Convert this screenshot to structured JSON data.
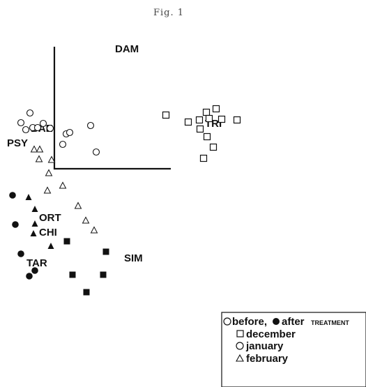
{
  "figure": {
    "caption": "Fig. 1"
  },
  "chart_data": {
    "type": "scatter",
    "title": "",
    "xlabel": "",
    "ylabel": "",
    "axis_labels": {
      "vertical": "DAM"
    },
    "group_labels": [
      {
        "text": "BAE"
      },
      {
        "text": "PSY"
      },
      {
        "text": "TRI"
      },
      {
        "text": "ORT"
      },
      {
        "text": "CHI"
      },
      {
        "text": "TAR"
      },
      {
        "text": "SIM"
      }
    ],
    "series": [
      {
        "name": "before, december",
        "marker": "open-square",
        "points": [
          [
            238,
            165
          ],
          [
            270,
            175
          ],
          [
            286,
            172
          ],
          [
            296,
            161
          ],
          [
            310,
            156
          ],
          [
            300,
            170
          ],
          [
            318,
            171
          ],
          [
            340,
            172
          ],
          [
            287,
            185
          ],
          [
            297,
            196
          ],
          [
            306,
            211
          ],
          [
            292,
            227
          ]
        ]
      },
      {
        "name": "before, january",
        "marker": "open-circle",
        "points": [
          [
            43,
            162
          ],
          [
            30,
            176
          ],
          [
            37,
            186
          ],
          [
            47,
            183
          ],
          [
            54,
            183
          ],
          [
            62,
            177
          ],
          [
            72,
            184
          ],
          [
            95,
            192
          ],
          [
            100,
            190
          ],
          [
            90,
            207
          ],
          [
            130,
            180
          ],
          [
            138,
            218
          ]
        ]
      },
      {
        "name": "before, february",
        "marker": "open-triangle",
        "points": [
          [
            49,
            214
          ],
          [
            57,
            214
          ],
          [
            56,
            228
          ],
          [
            74,
            229
          ],
          [
            70,
            248
          ],
          [
            90,
            266
          ],
          [
            68,
            273
          ],
          [
            112,
            295
          ],
          [
            123,
            316
          ],
          [
            135,
            330
          ]
        ]
      },
      {
        "name": "after, december",
        "marker": "filled-square",
        "points": [
          [
            96,
            346
          ],
          [
            152,
            361
          ],
          [
            104,
            394
          ],
          [
            148,
            394
          ],
          [
            124,
            419
          ]
        ]
      },
      {
        "name": "after, january",
        "marker": "filled-circle",
        "points": [
          [
            18,
            280
          ],
          [
            22,
            322
          ],
          [
            30,
            364
          ],
          [
            42,
            396
          ],
          [
            50,
            388
          ]
        ]
      },
      {
        "name": "after, february",
        "marker": "filled-triangle",
        "points": [
          [
            41,
            283
          ],
          [
            50,
            300
          ],
          [
            50,
            321
          ],
          [
            48,
            335
          ],
          [
            73,
            353
          ]
        ]
      }
    ],
    "legend": {
      "position": "bottom-right",
      "line1_before": "before,",
      "line1_after": "after",
      "line1_treatment": "TREATMENT",
      "entries": [
        {
          "marker": "open-square",
          "label": "december"
        },
        {
          "marker": "open-circle",
          "label": "january"
        },
        {
          "marker": "open-triangle",
          "label": "february"
        }
      ]
    },
    "grid": false
  }
}
